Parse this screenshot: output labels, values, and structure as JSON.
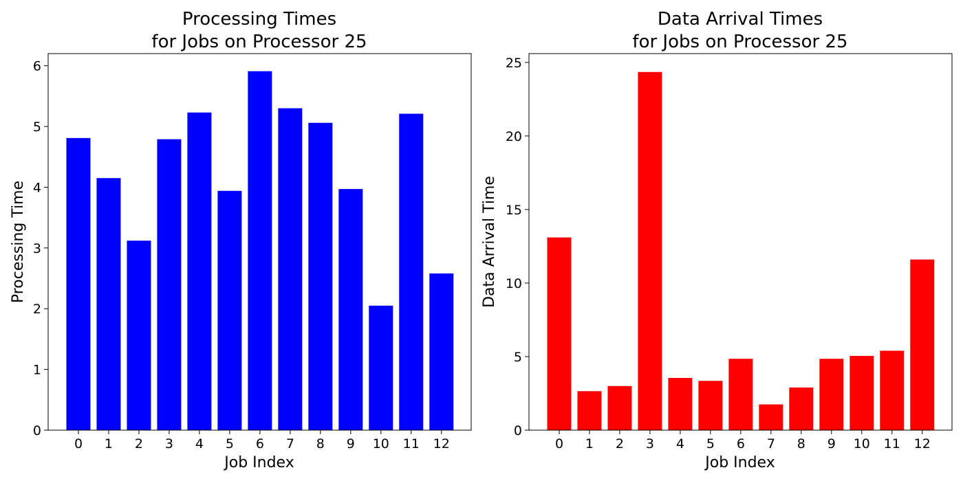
{
  "chart_data": [
    {
      "type": "bar",
      "title_lines": [
        "Processing Times",
        "for Jobs on Processor 25"
      ],
      "xlabel": "Job Index",
      "ylabel": "Processing Time",
      "categories": [
        "0",
        "1",
        "2",
        "3",
        "4",
        "5",
        "6",
        "7",
        "8",
        "9",
        "10",
        "11",
        "12"
      ],
      "values": [
        4.81,
        4.15,
        3.12,
        4.79,
        5.23,
        3.94,
        5.91,
        5.3,
        5.06,
        3.97,
        2.05,
        5.21,
        2.58
      ],
      "ylim": [
        0,
        6.2
      ],
      "yticks": [
        0,
        1,
        2,
        3,
        4,
        5,
        6
      ],
      "color": "#0000ff",
      "grid": false
    },
    {
      "type": "bar",
      "title_lines": [
        "Data Arrival Times",
        "for Jobs on Processor 25"
      ],
      "xlabel": "Job Index",
      "ylabel": "Data Arrival Time",
      "categories": [
        "0",
        "1",
        "2",
        "3",
        "4",
        "5",
        "6",
        "7",
        "8",
        "9",
        "10",
        "11",
        "12"
      ],
      "values": [
        13.1,
        2.65,
        3.0,
        24.35,
        3.55,
        3.35,
        4.85,
        1.75,
        2.9,
        4.85,
        5.05,
        5.4,
        11.6
      ],
      "ylim": [
        0,
        25.6
      ],
      "yticks": [
        0,
        5,
        10,
        15,
        20,
        25
      ],
      "color": "#ff0000",
      "grid": false
    }
  ]
}
